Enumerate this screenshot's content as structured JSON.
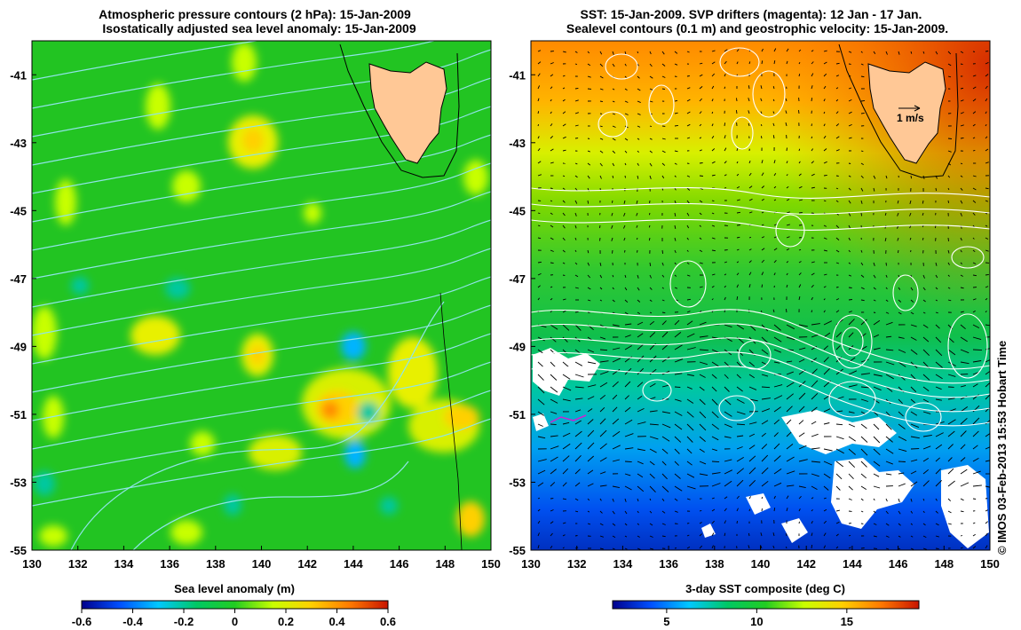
{
  "left_map": {
    "title_line1": "Atmospheric pressure contours (2 hPa): 15-Jan-2009",
    "title_line2": "Isostatically adjusted sea level anomaly: 15-Jan-2009",
    "lon_range": [
      130,
      150
    ],
    "lat_range": [
      -55,
      -40
    ],
    "x_ticks": [
      "130",
      "132",
      "134",
      "136",
      "138",
      "140",
      "142",
      "144",
      "146",
      "148",
      "150"
    ],
    "y_ticks": [
      "-41",
      "-43",
      "-45",
      "-47",
      "-49",
      "-51",
      "-53",
      "-55"
    ],
    "colorbar": {
      "label": "Sea level anomaly (m)",
      "ticks": [
        "-0.6",
        "-0.4",
        "-0.2",
        "0",
        "0.2",
        "0.4",
        "0.6"
      ],
      "range": [
        -0.6,
        0.6
      ],
      "colors": [
        "#00008c",
        "#0050ff",
        "#00c8ff",
        "#00c864",
        "#22cc22",
        "#c8ff00",
        "#ffd000",
        "#ff7a00",
        "#c81400"
      ]
    },
    "background_color": "#22c422",
    "land_color": "#ffc896",
    "contour_color": "#8fe4e8"
  },
  "right_map": {
    "title_line1": "SST: 15-Jan-2009. SVP drifters (magenta): 12 Jan - 17 Jan.",
    "title_line2": "Sealevel contours (0.1 m) and geostrophic velocity: 15-Jan-2009.",
    "lon_range": [
      130,
      150
    ],
    "lat_range": [
      -55,
      -40
    ],
    "x_ticks": [
      "130",
      "132",
      "134",
      "136",
      "138",
      "140",
      "142",
      "144",
      "146",
      "148",
      "150"
    ],
    "y_ticks": [
      "-41",
      "-43",
      "-45",
      "-47",
      "-49",
      "-51",
      "-53",
      "-55"
    ],
    "velocity_scale_label": "1 m/s",
    "colorbar": {
      "label": "3-day SST composite (deg C)",
      "ticks": [
        "5",
        "10",
        "15"
      ],
      "range": [
        2,
        19
      ],
      "colors": [
        "#00008c",
        "#0050ff",
        "#00c8ff",
        "#00c864",
        "#22cc22",
        "#c8ff00",
        "#ffd000",
        "#ff7a00",
        "#c81400"
      ]
    },
    "land_color": "#ffc896",
    "contour_color": "#ffffff",
    "drifter_color": "#d020d0"
  },
  "credit": "© IMOS 03-Feb-2013 15:53 Hobart Time"
}
